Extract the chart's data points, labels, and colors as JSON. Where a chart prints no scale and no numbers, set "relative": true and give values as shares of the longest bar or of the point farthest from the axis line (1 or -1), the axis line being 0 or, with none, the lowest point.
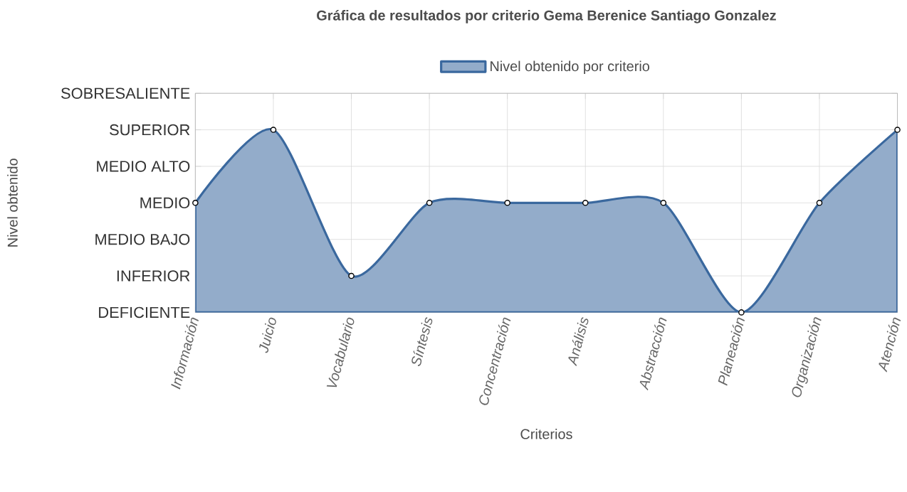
{
  "chart_data": {
    "type": "area",
    "title": "Gráfica de resultados por criterio Gema Berenice Santiago Gonzalez",
    "xlabel": "Criterios",
    "categories": [
      "Información",
      "Juicio",
      "Vocabulario",
      "Síntesis",
      "Concentración",
      "Análisis",
      "Abstracción",
      "Planeación",
      "Organización",
      "Atención"
    ],
    "series": [
      {
        "name": "Nivel obtenido por criterio",
        "color": "#3a689e",
        "values": [
          0.6,
          1,
          0.2,
          0.6,
          0.6,
          0.6,
          0.6,
          0,
          0.6,
          1
        ]
      }
    ],
    "relative": true,
    "annotations": [
      "DEFICIENTE",
      "INFERIOR",
      "MEDIO BAJO",
      "MEDIO",
      "MEDIO ALTO",
      "SUPERIOR",
      "SOBRESALIENTE",
      "Nivel obtenido"
    ],
    "grid": true,
    "legend": "top",
    "marker": "circle",
    "line_style": "solid"
  }
}
